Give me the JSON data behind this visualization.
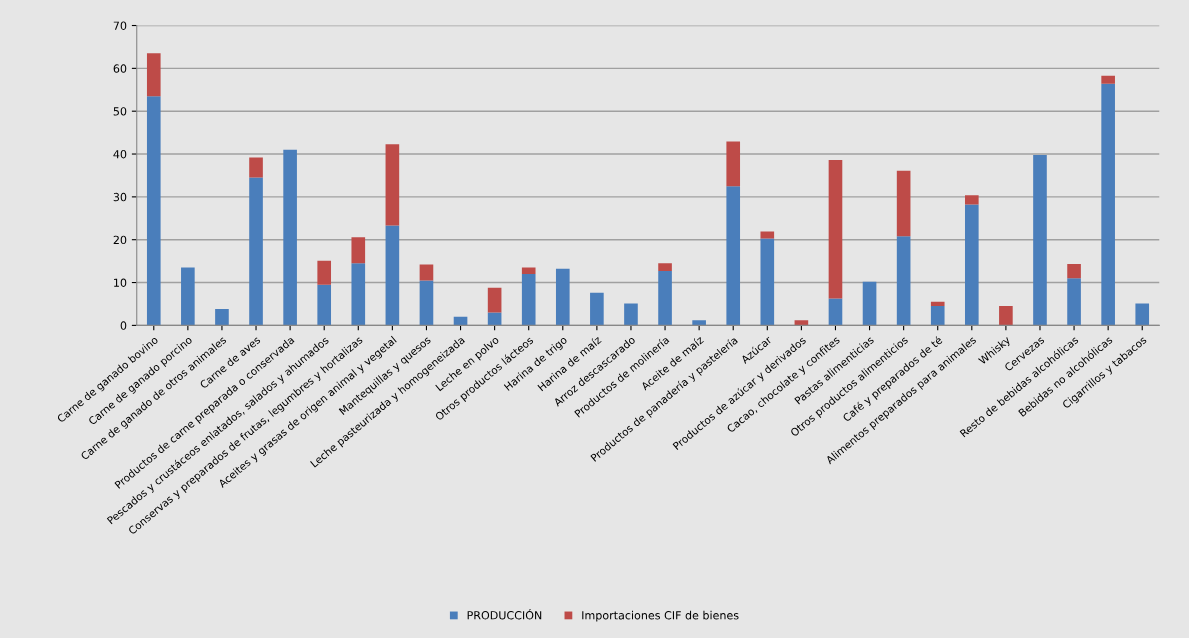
{
  "chart_data": {
    "type": "bar",
    "stacked": true,
    "categories": [
      "Carne de ganado bovino",
      "Carne de ganado porcino",
      "Carne de ganado de otros animales",
      "Carne de aves",
      "Productos de carne preparada o conservada",
      "Pescados y crustáceos enlatados, salados y ahumados",
      "Conservas y preparados de frutas, legumbres y hortalizas",
      "Aceites y grasas de origen animal y vegetal",
      "Mantequillas y quesos",
      "Leche pasteurizada y homogeneizada",
      "Leche en polvo",
      "Otros productos lácteos",
      "Harina de trigo",
      "Harina de maíz",
      "Arroz descascarado",
      "Productos de molinería",
      "Aceite de maíz",
      "Productos de panadería y pastelería",
      "Azúcar",
      "Productos de azúcar y derivados",
      "Cacao, chocolate y confites",
      "Pastas alimenticias",
      "Otros productos alimenticios",
      "Café y preparados de té",
      "Alimentos preparados para animales",
      "Whisky",
      "Cervezas",
      "Resto de bebidas alcohólicas",
      "Bebidas no alcohólicas",
      "Cigarrillos y tabacos"
    ],
    "series": [
      {
        "name": "PRODUCCIÓN",
        "color": "#4a7ebb",
        "values": [
          53.5,
          13.5,
          3.8,
          34.5,
          41,
          9.5,
          14.5,
          23.3,
          10.5,
          2,
          3,
          12,
          13.2,
          7.6,
          5.1,
          12.7,
          1.2,
          32.5,
          20.3,
          0,
          6.3,
          10.2,
          20.8,
          4.5,
          28.2,
          0,
          39.8,
          11,
          56.4,
          5.1
        ]
      },
      {
        "name": "Importaciones CIF de bienes",
        "color": "#be4b48",
        "values": [
          10,
          0,
          0,
          4.7,
          0,
          5.6,
          6.1,
          19,
          3.7,
          0,
          5.8,
          1.5,
          0,
          0,
          0,
          1.8,
          0,
          10.4,
          1.6,
          1.2,
          32.3,
          0,
          15.3,
          1,
          2.2,
          4.5,
          0,
          3.3,
          1.9,
          0
        ]
      }
    ],
    "ylim": [
      0,
      70
    ],
    "yticks": [
      0,
      10,
      20,
      30,
      40,
      50,
      60,
      70
    ],
    "grid": "y",
    "legend": "bottom"
  }
}
